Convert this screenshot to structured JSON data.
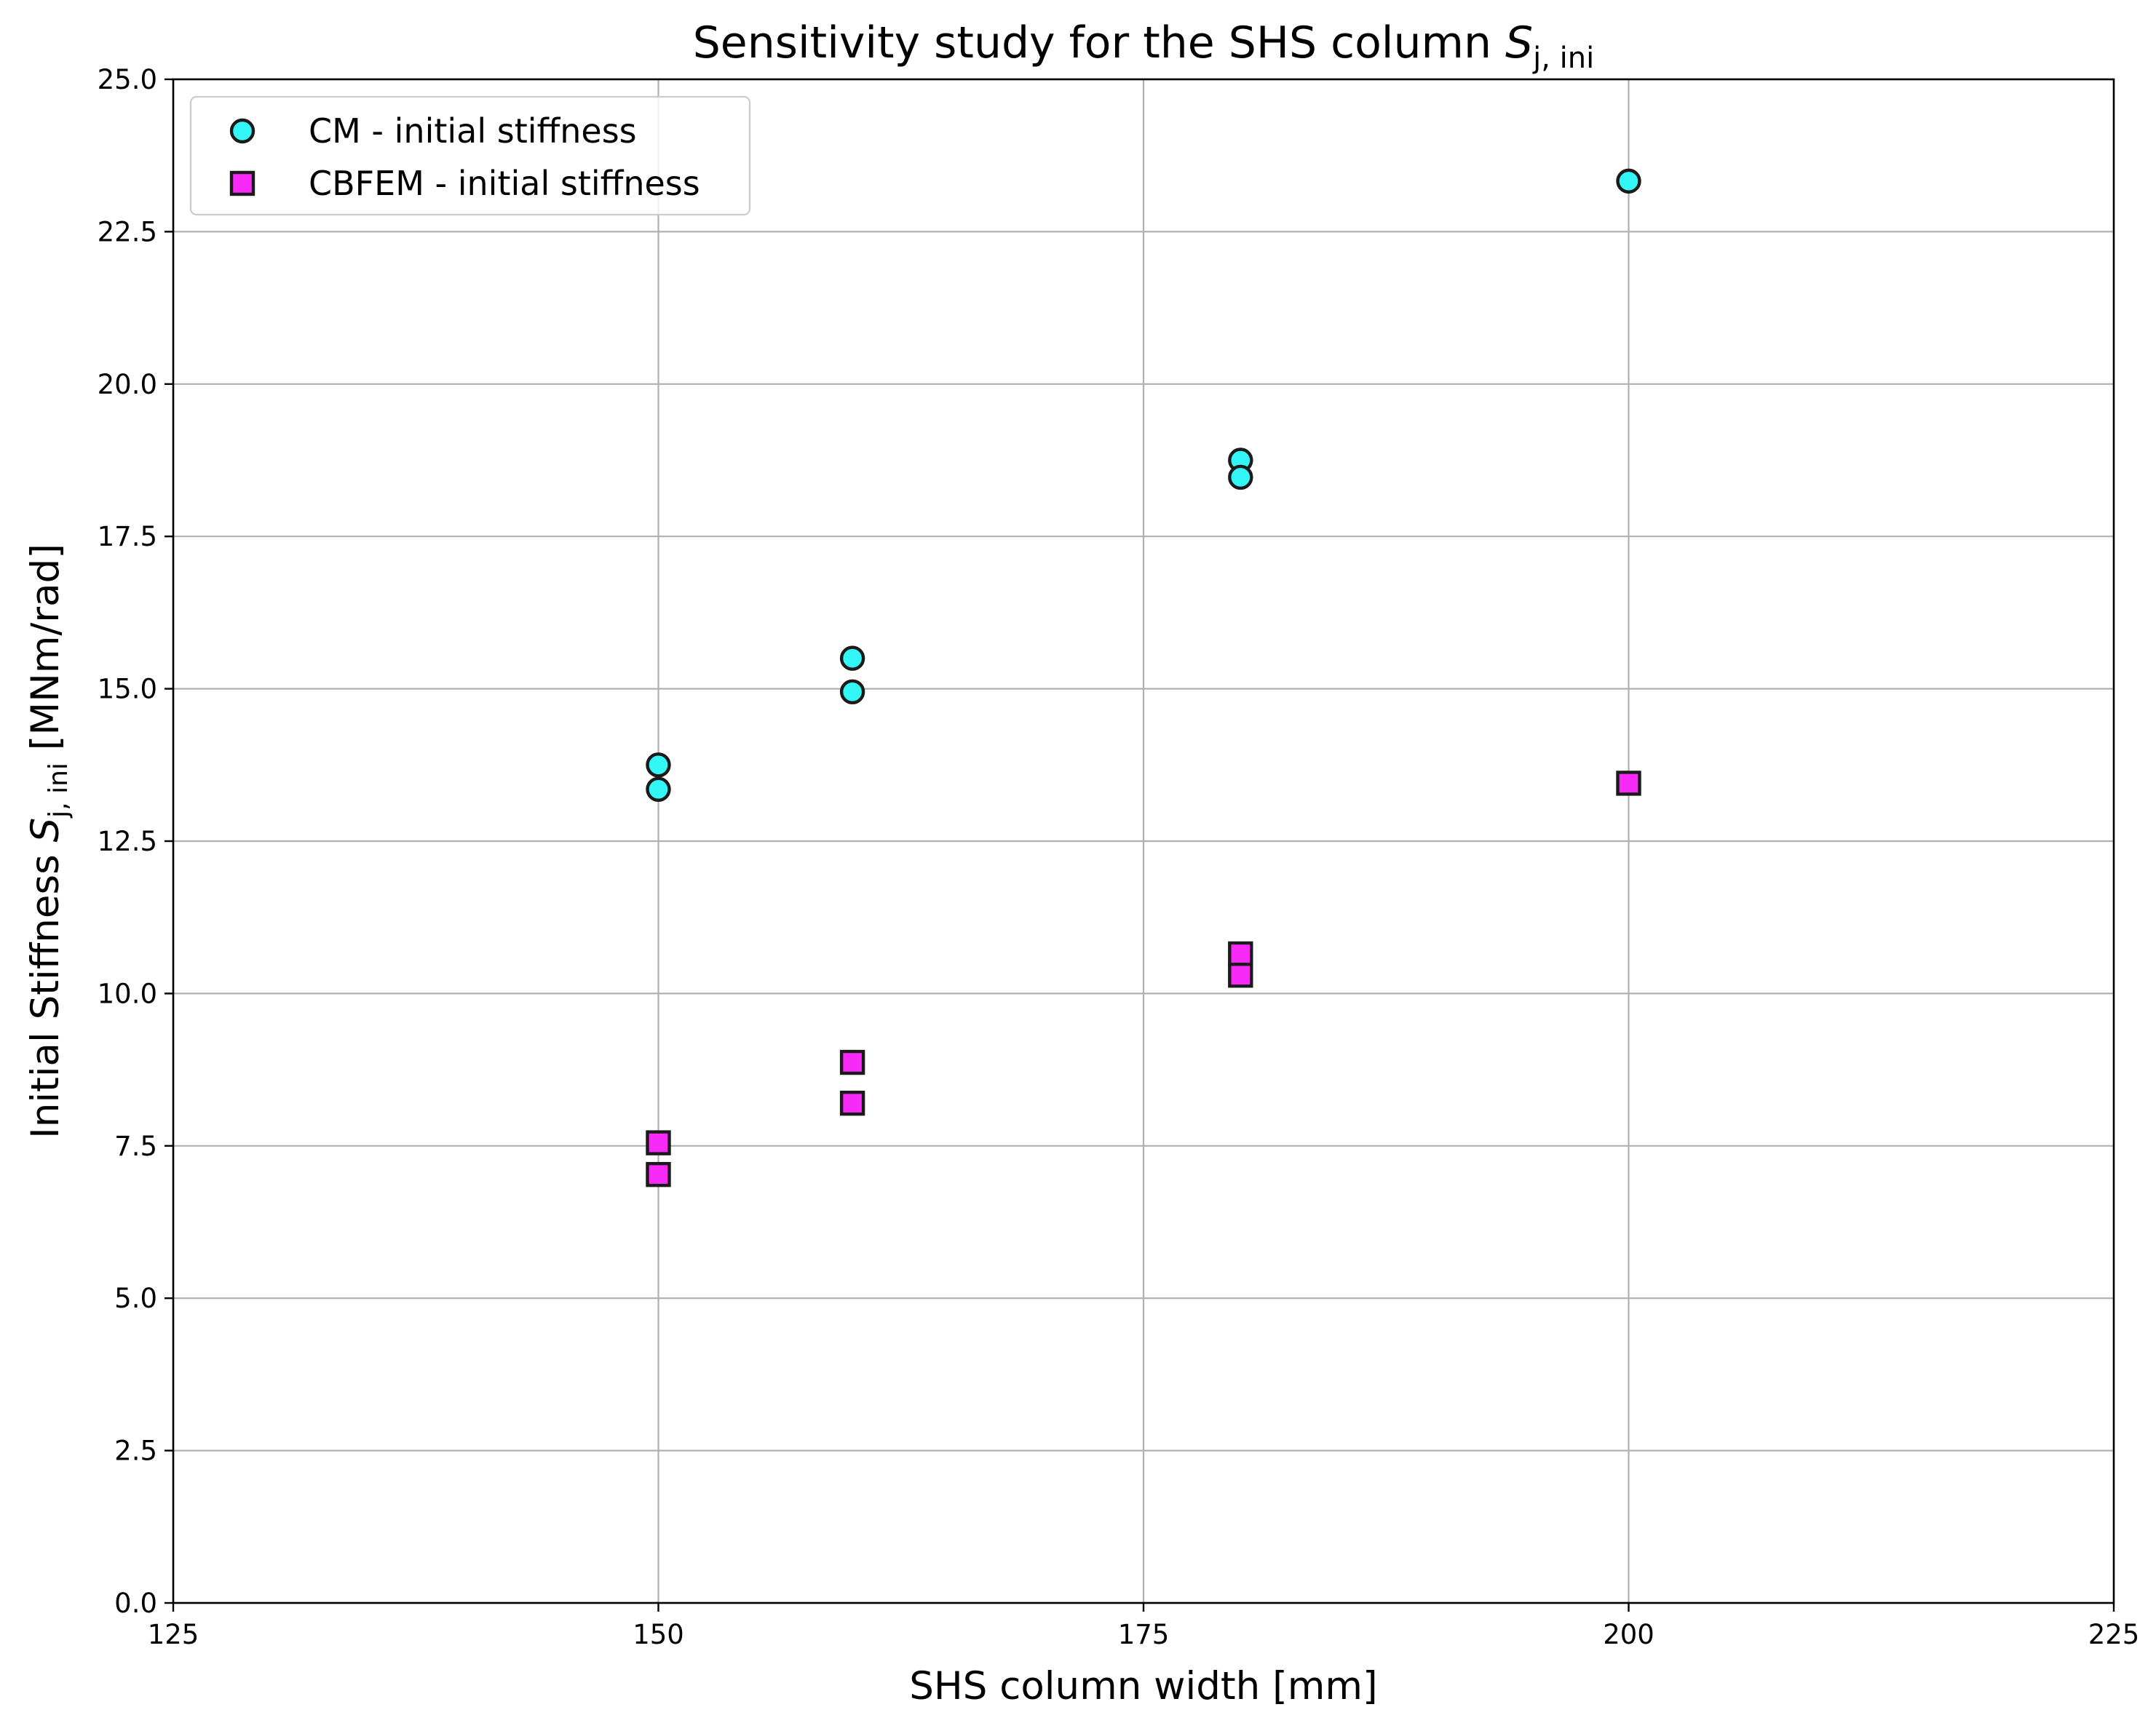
{
  "chart_data": {
    "type": "scatter",
    "title": {
      "main": "Sensitivity study for the SHS column ",
      "symbol": "S",
      "subscript": "j, ini"
    },
    "xlabel": "SHS column width [mm]",
    "ylabel": {
      "prefix": "Initial Stiffness ",
      "symbol": "S",
      "subscript": "j, ini",
      "suffix": " [MNm/rad]"
    },
    "xlim": [
      125,
      225
    ],
    "ylim": [
      0,
      25
    ],
    "x_ticks": [
      125,
      150,
      175,
      200,
      225
    ],
    "x_tick_labels": [
      "125",
      "150",
      "175",
      "200",
      "225"
    ],
    "y_ticks": [
      0,
      2.5,
      5,
      7.5,
      10,
      12.5,
      15,
      17.5,
      20,
      22.5,
      25
    ],
    "y_tick_labels": [
      "0.0",
      "2.5",
      "5.0",
      "7.5",
      "10.0",
      "12.5",
      "15.0",
      "17.5",
      "20.0",
      "22.5",
      "25.0"
    ],
    "grid": true,
    "legend_position": "top-left",
    "series": [
      {
        "name": "CM - initial stiffness",
        "marker": "circle",
        "color": "#33f7f7",
        "edge_color": "#1a1a1a",
        "points": [
          {
            "x": 150,
            "y": 13.75
          },
          {
            "x": 150,
            "y": 13.35
          },
          {
            "x": 160,
            "y": 15.5
          },
          {
            "x": 160,
            "y": 14.95
          },
          {
            "x": 180,
            "y": 18.75
          },
          {
            "x": 180,
            "y": 18.47
          },
          {
            "x": 200,
            "y": 23.33
          }
        ]
      },
      {
        "name": "CBFEM - initial stiffness",
        "marker": "square",
        "color": "#f72af7",
        "edge_color": "#1a1a1a",
        "points": [
          {
            "x": 150,
            "y": 7.55
          },
          {
            "x": 150,
            "y": 7.03
          },
          {
            "x": 160,
            "y": 8.87
          },
          {
            "x": 160,
            "y": 8.2
          },
          {
            "x": 180,
            "y": 10.65
          },
          {
            "x": 180,
            "y": 10.3
          },
          {
            "x": 200,
            "y": 13.45
          }
        ]
      }
    ]
  }
}
